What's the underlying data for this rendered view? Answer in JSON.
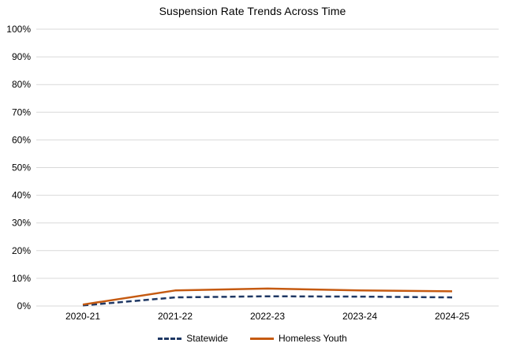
{
  "chart_data": {
    "type": "line",
    "title": "Suspension Rate Trends Across Time",
    "categories": [
      "2020-21",
      "2021-22",
      "2022-23",
      "2023-24",
      "2024-25"
    ],
    "series": [
      {
        "name": "Statewide",
        "values": [
          0.2,
          3.1,
          3.5,
          3.4,
          3.1
        ],
        "color": "#1F3864",
        "style": "dashed"
      },
      {
        "name": "Homeless Youth",
        "values": [
          0.5,
          5.6,
          6.3,
          5.6,
          5.3
        ],
        "color": "#C55A11",
        "style": "solid"
      }
    ],
    "xlabel": "",
    "ylabel": "",
    "ylim": [
      0,
      100
    ],
    "ytick_step": 10,
    "ytick_suffix": "%",
    "grid": "horizontal",
    "gridline_color": "#D9D9D9",
    "axis_text_color": "#000000",
    "legend_position": "bottom-center"
  }
}
